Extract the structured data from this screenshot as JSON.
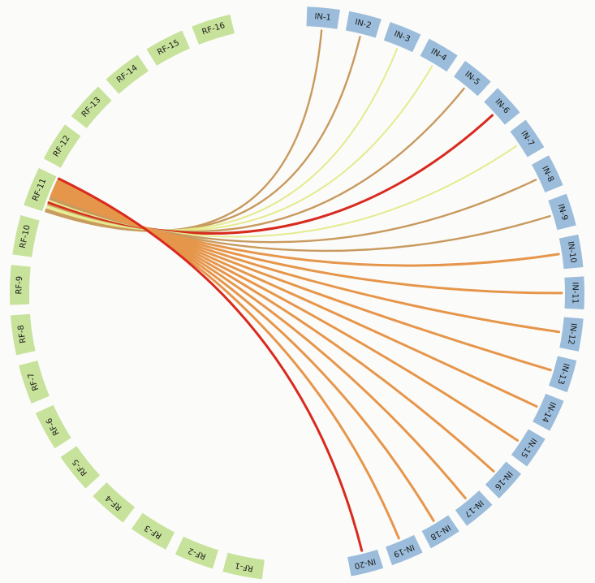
{
  "diagram": {
    "type": "chord",
    "colors": {
      "rf_segment": "#c7e29a",
      "in_segment": "#9bbddb",
      "link_weak": "#e5eb8e",
      "link_medium": "#e6964a",
      "link_strong": "#d92a1e",
      "link_mixed": "#c89a5e"
    },
    "left_group": [
      "RF-1",
      "RF-2",
      "RF-3",
      "RF-4",
      "RF-5",
      "RF-6",
      "RF-7",
      "RF-8",
      "RF-9",
      "RF-10",
      "RF-11",
      "RF-12",
      "RF-13",
      "RF-14",
      "RF-15",
      "RF-16"
    ],
    "right_group": [
      "IN-1",
      "IN-2",
      "IN-3",
      "IN-4",
      "IN-5",
      "IN-6",
      "IN-7",
      "IN-8",
      "IN-9",
      "IN-10",
      "IN-11",
      "IN-12",
      "IN-13",
      "IN-14",
      "IN-15",
      "IN-16",
      "IN-17",
      "IN-18",
      "IN-19",
      "IN-20"
    ],
    "links": [
      {
        "source": "RF-11",
        "target": "IN-1",
        "strength": "mixed"
      },
      {
        "source": "RF-11",
        "target": "IN-2",
        "strength": "mixed"
      },
      {
        "source": "RF-11",
        "target": "IN-3",
        "strength": "weak"
      },
      {
        "source": "RF-11",
        "target": "IN-4",
        "strength": "weak"
      },
      {
        "source": "RF-11",
        "target": "IN-5",
        "strength": "mixed"
      },
      {
        "source": "RF-11",
        "target": "IN-6",
        "strength": "strong"
      },
      {
        "source": "RF-11",
        "target": "IN-7",
        "strength": "weak"
      },
      {
        "source": "RF-11",
        "target": "IN-8",
        "strength": "mixed"
      },
      {
        "source": "RF-11",
        "target": "IN-9",
        "strength": "mixed"
      },
      {
        "source": "RF-11",
        "target": "IN-10",
        "strength": "medium"
      },
      {
        "source": "RF-11",
        "target": "IN-11",
        "strength": "medium"
      },
      {
        "source": "RF-11",
        "target": "IN-12",
        "strength": "medium"
      },
      {
        "source": "RF-11",
        "target": "IN-13",
        "strength": "medium"
      },
      {
        "source": "RF-11",
        "target": "IN-14",
        "strength": "medium"
      },
      {
        "source": "RF-11",
        "target": "IN-15",
        "strength": "medium"
      },
      {
        "source": "RF-11",
        "target": "IN-16",
        "strength": "medium"
      },
      {
        "source": "RF-11",
        "target": "IN-17",
        "strength": "medium"
      },
      {
        "source": "RF-11",
        "target": "IN-18",
        "strength": "medium"
      },
      {
        "source": "RF-11",
        "target": "IN-19",
        "strength": "medium"
      },
      {
        "source": "RF-11",
        "target": "IN-20",
        "strength": "strong"
      }
    ]
  }
}
